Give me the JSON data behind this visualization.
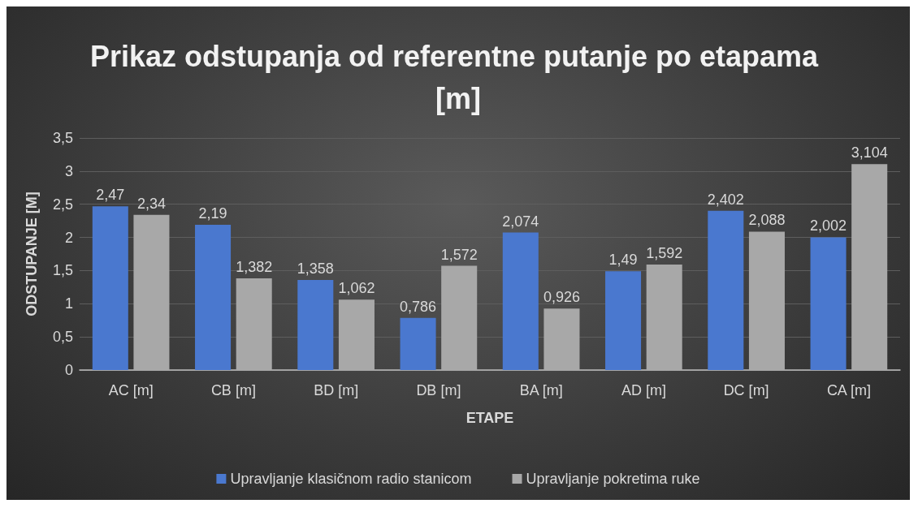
{
  "chart_data": {
    "type": "bar",
    "title": "Prikaz odstupanja od referentne putanje po etapama [m]",
    "xlabel": "ETAPE",
    "ylabel": "ODSTUPANJE [M]",
    "categories": [
      "AC [m]",
      "CB [m]",
      "BD [m]",
      "DB [m]",
      "BA [m]",
      "AD [m]",
      "DC [m]",
      "CA [m]"
    ],
    "series": [
      {
        "name": "Upravljanje klasičnom radio stanicom",
        "color": "#4a78cf",
        "values": [
          2.47,
          2.19,
          1.358,
          0.786,
          2.074,
          1.49,
          2.402,
          2.002
        ],
        "value_labels": [
          "2,47",
          "2,19",
          "1,358",
          "0,786",
          "2,074",
          "1,49",
          "2,402",
          "2,002"
        ]
      },
      {
        "name": "Upravljanje pokretima ruke",
        "color": "#a8a8a8",
        "values": [
          2.34,
          1.382,
          1.062,
          1.572,
          0.926,
          1.592,
          2.088,
          3.104
        ],
        "value_labels": [
          "2,34",
          "1,382",
          "1,062",
          "1,572",
          "0,926",
          "1,592",
          "2,088",
          "3,104"
        ]
      }
    ],
    "ylim": [
      0,
      3.5
    ],
    "yticks": [
      0,
      {
        "value": 0.5,
        "label": "0,5"
      },
      1,
      {
        "value": 1.5,
        "label": "1,5"
      },
      2,
      {
        "value": 2.5,
        "label": "2,5"
      },
      3,
      {
        "value": 3.5,
        "label": "3,5"
      }
    ],
    "grid": "y",
    "legend": "bottom"
  }
}
